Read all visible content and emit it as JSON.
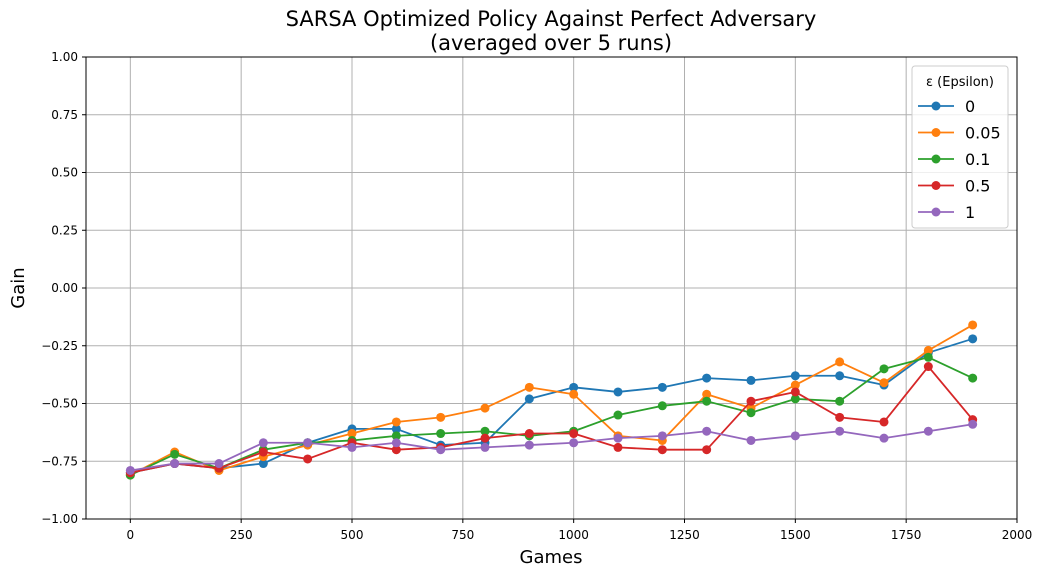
{
  "chart_data": {
    "type": "line",
    "title": "SARSA Optimized Policy Against Perfect Adversary",
    "subtitle": "(averaged over 5 runs)",
    "xlabel": "Games",
    "ylabel": "Gain",
    "xlim": [
      -100,
      2000
    ],
    "ylim": [
      -1.0,
      1.0
    ],
    "xticks": [
      0,
      250,
      500,
      750,
      1000,
      1250,
      1500,
      1750,
      2000
    ],
    "yticks": [
      -1.0,
      -0.75,
      -0.5,
      -0.25,
      0.0,
      0.25,
      0.5,
      0.75,
      1.0
    ],
    "xtick_labels": [
      "0",
      "250",
      "500",
      "750",
      "1000",
      "1250",
      "1500",
      "1750",
      "2000"
    ],
    "ytick_labels": [
      "−1.00",
      "−0.75",
      "−0.50",
      "−0.25",
      "0.00",
      "0.25",
      "0.50",
      "0.75",
      "1.00"
    ],
    "grid": true,
    "legend": {
      "title": "ε (Epsilon)",
      "placement": "top-right"
    },
    "x": [
      0,
      100,
      200,
      300,
      400,
      500,
      600,
      700,
      800,
      900,
      1000,
      1100,
      1200,
      1300,
      1400,
      1500,
      1600,
      1700,
      1800,
      1900
    ],
    "series": [
      {
        "name": "0",
        "color": "#1f77b4",
        "values": [
          -0.8,
          -0.76,
          -0.78,
          -0.76,
          -0.67,
          -0.61,
          -0.61,
          -0.68,
          -0.67,
          -0.48,
          -0.43,
          -0.45,
          -0.43,
          -0.39,
          -0.4,
          -0.38,
          -0.38,
          -0.42,
          -0.28,
          -0.22
        ]
      },
      {
        "name": "0.05",
        "color": "#ff7f0e",
        "values": [
          -0.81,
          -0.71,
          -0.79,
          -0.73,
          -0.68,
          -0.63,
          -0.58,
          -0.56,
          -0.52,
          -0.43,
          -0.46,
          -0.64,
          -0.66,
          -0.46,
          -0.52,
          -0.42,
          -0.32,
          -0.41,
          -0.27,
          -0.16
        ]
      },
      {
        "name": "0.1",
        "color": "#2ca02c",
        "values": [
          -0.81,
          -0.72,
          -0.78,
          -0.7,
          -0.67,
          -0.66,
          -0.64,
          -0.63,
          -0.62,
          -0.64,
          -0.62,
          -0.55,
          -0.51,
          -0.49,
          -0.54,
          -0.48,
          -0.49,
          -0.35,
          -0.3,
          -0.39
        ]
      },
      {
        "name": "0.5",
        "color": "#d62728",
        "values": [
          -0.8,
          -0.76,
          -0.78,
          -0.71,
          -0.74,
          -0.67,
          -0.7,
          -0.69,
          -0.65,
          -0.63,
          -0.63,
          -0.69,
          -0.7,
          -0.7,
          -0.49,
          -0.45,
          -0.56,
          -0.58,
          -0.34,
          -0.57
        ]
      },
      {
        "name": "1",
        "color": "#9467bd",
        "values": [
          -0.79,
          -0.76,
          -0.76,
          -0.67,
          -0.67,
          -0.69,
          -0.67,
          -0.7,
          -0.69,
          -0.68,
          -0.67,
          -0.65,
          -0.64,
          -0.62,
          -0.66,
          -0.64,
          -0.62,
          -0.65,
          -0.62,
          -0.59
        ]
      }
    ]
  }
}
